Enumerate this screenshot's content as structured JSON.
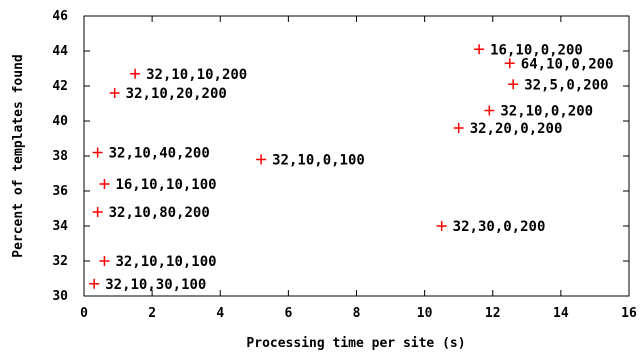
{
  "chart_data": {
    "type": "scatter",
    "xlabel": "Processing time per site (s)",
    "ylabel": "Percent of templates found",
    "xlim": [
      0,
      16
    ],
    "ylim": [
      30,
      46
    ],
    "x_ticks": [
      0,
      2,
      4,
      6,
      8,
      10,
      12,
      14,
      16
    ],
    "y_ticks": [
      30,
      32,
      34,
      36,
      38,
      40,
      42,
      44,
      46
    ],
    "grid": false,
    "marker": "plus",
    "marker_color": "#ff0000",
    "points": [
      {
        "label": "16,10,0,200",
        "x": 11.6,
        "y": 44.1
      },
      {
        "label": "64,10,0,200",
        "x": 12.5,
        "y": 43.3
      },
      {
        "label": "32,10,10,200",
        "x": 1.5,
        "y": 42.7
      },
      {
        "label": "32,5,0,200",
        "x": 12.6,
        "y": 42.1
      },
      {
        "label": "32,10,20,200",
        "x": 0.9,
        "y": 41.6
      },
      {
        "label": "32,10,0,200",
        "x": 11.9,
        "y": 40.6
      },
      {
        "label": "32,20,0,200",
        "x": 11.0,
        "y": 39.6
      },
      {
        "label": "32,10,40,200",
        "x": 0.4,
        "y": 38.2
      },
      {
        "label": "32,10,0,100",
        "x": 5.2,
        "y": 37.8
      },
      {
        "label": "16,10,10,100",
        "x": 0.6,
        "y": 36.4
      },
      {
        "label": "32,10,80,200",
        "x": 0.4,
        "y": 34.8
      },
      {
        "label": "32,30,0,200",
        "x": 10.5,
        "y": 34.0
      },
      {
        "label": "32,10,10,100",
        "x": 0.6,
        "y": 32.0
      },
      {
        "label": "32,10,30,100",
        "x": 0.3,
        "y": 30.7
      }
    ]
  }
}
